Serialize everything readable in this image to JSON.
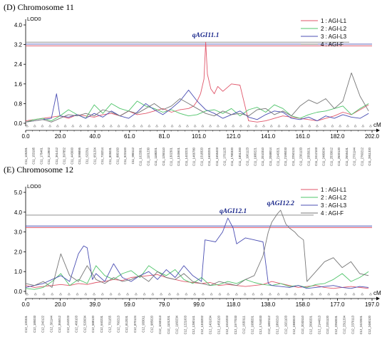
{
  "colors": {
    "AGI-L1": "#e0566a",
    "AGI-L2": "#4fc46a",
    "AGI-L3": "#4b4fb3",
    "AGI-F": "#777777",
    "threshold_red": "#d9455a",
    "threshold_blue": "#4b4fb3",
    "threshold_gray": "#808080"
  },
  "chart_data": [
    {
      "type": "line",
      "title": "(D) Chromosome 11",
      "ylabel": "LOD0",
      "xunit": "cM",
      "xlim": [
        0,
        202
      ],
      "ylim": [
        0,
        4
      ],
      "yticks": [
        "0.0",
        "0.8",
        "1.6",
        "2.4",
        "3.2",
        "4.0"
      ],
      "xticks": [
        "0.0",
        "20.0",
        "40.0",
        "61.0",
        "81.0",
        "101.0",
        "121.0",
        "141.0",
        "161.0",
        "182.0",
        "202.0"
      ],
      "legend": [
        "1 : AGI-L1",
        "2 : AGI-L2",
        "3 : AGI-L3",
        "4 : AGI-F"
      ],
      "thresholds": [
        3.3,
        3.22,
        3.15
      ],
      "qtl": [
        {
          "label": "qAGI11.1",
          "x": 105,
          "y": 3.3
        }
      ],
      "markers": [
        "C11_105281",
        "C11_153195",
        "C11_176461",
        "C11_313902",
        "C11_361412",
        "C11_397852",
        "C11_443000",
        "C11_599895",
        "C11_622311",
        "C11_651204",
        "C11_733214",
        "C11_805031",
        "C11_880150",
        "C11_923100",
        "C11_990112",
        "C11_1023301",
        "C11_1101230",
        "C11_1188201",
        "C11_1250110",
        "C11_1302301",
        "C11_1345601",
        "C11_1402221",
        "C11_1466780",
        "C11_1518320",
        "C11_1600201",
        "C11_1655403",
        "C11_1701125",
        "C11_1780320",
        "C11_1851200",
        "C11_1901123",
        "C11_1980221",
        "C11_2010310",
        "C11_2088014",
        "C11_2140321",
        "C11_2195033",
        "C11_2250124",
        "C11_2301133",
        "C11_2355021",
        "C11_2412103",
        "C11_2480034",
        "C11_2533012",
        "C11_2600120",
        "C11_2655431",
        "C11_2701144",
        "C11_2760212",
        "C11_2811320"
      ],
      "series": [
        {
          "name": "AGI-L1",
          "x": [
            0,
            5,
            10,
            15,
            20,
            25,
            30,
            35,
            40,
            45,
            50,
            55,
            60,
            65,
            70,
            75,
            80,
            85,
            90,
            95,
            98,
            100,
            102,
            104,
            105,
            106,
            108,
            110,
            112,
            115,
            120,
            125,
            130,
            135,
            140,
            145,
            150,
            155,
            160,
            165,
            170,
            175,
            180,
            185,
            190,
            195,
            200
          ],
          "y": [
            0.1,
            0.15,
            0.2,
            0.25,
            0.3,
            0.2,
            0.35,
            0.3,
            0.25,
            0.35,
            0.4,
            0.3,
            0.5,
            0.35,
            0.4,
            0.5,
            0.6,
            0.45,
            0.55,
            0.6,
            0.7,
            0.9,
            1.2,
            1.8,
            3.3,
            2.0,
            1.4,
            1.2,
            1.5,
            1.3,
            1.6,
            1.55,
            0.1,
            0.05,
            0.1,
            0.2,
            0.3,
            0.25,
            0.2,
            0.15,
            0.1,
            0.2,
            0.3,
            0.45,
            0.35,
            0.55,
            0.75
          ]
        },
        {
          "name": "AGI-L2",
          "x": [
            0,
            5,
            10,
            15,
            20,
            25,
            30,
            35,
            40,
            45,
            50,
            55,
            60,
            65,
            70,
            75,
            80,
            85,
            90,
            95,
            100,
            105,
            110,
            115,
            120,
            125,
            130,
            135,
            140,
            145,
            150,
            155,
            160,
            165,
            170,
            175,
            180,
            185,
            190,
            195,
            200
          ],
          "y": [
            0.05,
            0.15,
            0.2,
            0.1,
            0.3,
            0.55,
            0.35,
            0.2,
            0.75,
            0.4,
            0.8,
            0.6,
            0.5,
            0.9,
            0.7,
            0.6,
            0.45,
            0.55,
            0.4,
            0.3,
            0.35,
            0.5,
            0.55,
            0.4,
            0.6,
            0.3,
            0.55,
            0.65,
            0.45,
            0.75,
            0.6,
            0.3,
            0.2,
            0.35,
            0.45,
            0.5,
            0.6,
            0.7,
            0.35,
            0.6,
            0.8
          ]
        },
        {
          "name": "AGI-L3",
          "x": [
            0,
            5,
            10,
            15,
            18,
            20,
            25,
            30,
            35,
            40,
            45,
            50,
            55,
            60,
            65,
            70,
            75,
            80,
            85,
            90,
            95,
            100,
            105,
            110,
            115,
            120,
            125,
            130,
            135,
            140,
            145,
            150,
            155,
            160,
            165,
            170,
            175,
            180,
            185,
            190,
            195,
            200
          ],
          "y": [
            0.05,
            0.1,
            0.15,
            0.2,
            1.2,
            0.3,
            0.25,
            0.35,
            0.2,
            0.4,
            0.25,
            0.5,
            0.3,
            0.2,
            0.45,
            0.8,
            0.55,
            0.35,
            0.6,
            0.9,
            1.35,
            0.9,
            0.55,
            0.4,
            0.2,
            0.35,
            0.5,
            0.25,
            0.15,
            0.35,
            0.5,
            0.45,
            0.2,
            0.15,
            0.25,
            0.1,
            0.3,
            0.2,
            0.35,
            0.25,
            0.2,
            0.4
          ]
        },
        {
          "name": "AGI-F",
          "x": [
            0,
            5,
            10,
            15,
            20,
            25,
            30,
            35,
            40,
            45,
            50,
            55,
            60,
            65,
            70,
            75,
            80,
            85,
            90,
            95,
            100,
            105,
            110,
            115,
            120,
            125,
            130,
            135,
            140,
            145,
            150,
            155,
            160,
            165,
            170,
            175,
            180,
            185,
            190,
            195,
            200
          ],
          "y": [
            0.05,
            0.1,
            0.15,
            0.05,
            0.2,
            0.35,
            0.3,
            0.4,
            0.3,
            0.55,
            0.45,
            0.3,
            0.5,
            0.4,
            0.6,
            0.8,
            0.55,
            0.7,
            1.0,
            0.8,
            0.6,
            0.4,
            0.3,
            0.5,
            0.35,
            0.4,
            0.3,
            0.55,
            0.6,
            0.35,
            0.5,
            0.3,
            0.7,
            0.95,
            0.8,
            1.0,
            0.6,
            0.9,
            2.05,
            1.1,
            0.5
          ]
        }
      ]
    },
    {
      "type": "line",
      "title": "(E) Chromosome 12",
      "ylabel": "LOD0",
      "xunit": "cM",
      "xlim": [
        0,
        197
      ],
      "ylim": [
        0,
        5
      ],
      "yticks": [
        "0.0",
        "1.0",
        "2.0",
        "3.0",
        "4.0",
        "5.0"
      ],
      "xticks": [
        "0.0",
        "20.0",
        "39.0",
        "59.0",
        "79.0",
        "99.0",
        "118.0",
        "138.0",
        "158.0",
        "177.0",
        "197.0"
      ],
      "legend": [
        "1 : AGI-L1",
        "2 : AGI-L2",
        "3 : AGI-L3",
        "4 : AGI-F"
      ],
      "thresholds": [
        3.85,
        3.3,
        3.22
      ],
      "qtl": [
        {
          "label": "qAGI12.1",
          "x": 118,
          "y": 3.7
        },
        {
          "label": "qAGI12.2",
          "x": 145,
          "y": 4.1
        }
      ],
      "markers": [
        "C12_120331",
        "C12_185033",
        "C12_240122",
        "C12_301144",
        "C12_355012",
        "C12_410223",
        "C12_466103",
        "C12_520034",
        "C12_588120",
        "C12_640231",
        "C12_701155",
        "C12_760213",
        "C12_812031",
        "C12_870124",
        "C12_933011",
        "C12_985020",
        "C12_1040113",
        "C12_1101201",
        "C12_1160234",
        "C12_1221003",
        "C12_1280141",
        "C12_1333202",
        "C12_1401034",
        "C12_1455120",
        "C12_1510203",
        "C12_1577033",
        "C12_1630111",
        "C12_1688201",
        "C12_1744033",
        "C12_1802112",
        "C12_1860210",
        "C12_1921103",
        "C12_1980022",
        "C12_2033110",
        "C12_2090201",
        "C12_2144013",
        "C12_2201120",
        "C12_2260031",
        "C12_2311204",
        "C12_2370113",
        "C12_2422001",
        "C12_2480120"
      ],
      "series": [
        {
          "name": "AGI-L1",
          "x": [
            0,
            5,
            10,
            15,
            20,
            25,
            30,
            35,
            40,
            45,
            50,
            55,
            60,
            65,
            70,
            75,
            80,
            85,
            90,
            95,
            100,
            105,
            110,
            115,
            120,
            125,
            130,
            135,
            140,
            145,
            150,
            155,
            160,
            165,
            170,
            175,
            180,
            185,
            190,
            195
          ],
          "y": [
            0.3,
            0.2,
            0.25,
            0.3,
            0.35,
            0.3,
            0.4,
            0.35,
            0.45,
            0.5,
            0.6,
            0.55,
            0.7,
            0.75,
            0.8,
            0.85,
            0.7,
            0.6,
            0.5,
            0.45,
            0.4,
            0.45,
            0.3,
            0.35,
            0.3,
            0.25,
            0.3,
            0.35,
            0.5,
            0.4,
            0.3,
            0.2,
            0.25,
            0.3,
            0.2,
            0.15,
            0.2,
            0.25,
            0.2,
            0.15
          ]
        },
        {
          "name": "AGI-L2",
          "x": [
            0,
            5,
            10,
            15,
            20,
            25,
            30,
            35,
            40,
            45,
            50,
            55,
            60,
            65,
            70,
            75,
            80,
            85,
            90,
            95,
            100,
            105,
            110,
            115,
            120,
            125,
            130,
            135,
            140,
            145,
            150,
            155,
            160,
            165,
            170,
            175,
            180,
            185,
            190,
            195
          ],
          "y": [
            0.15,
            0.1,
            0.2,
            0.5,
            0.9,
            0.3,
            0.6,
            0.4,
            1.3,
            0.8,
            0.6,
            0.9,
            1.05,
            0.7,
            1.3,
            1.0,
            0.8,
            1.1,
            0.6,
            0.4,
            0.7,
            0.3,
            0.35,
            0.5,
            0.4,
            0.6,
            0.45,
            0.35,
            0.3,
            0.4,
            0.25,
            0.3,
            0.2,
            0.35,
            0.4,
            0.6,
            0.9,
            0.5,
            0.7,
            1.0
          ]
        },
        {
          "name": "AGI-L3",
          "x": [
            0,
            5,
            10,
            15,
            20,
            25,
            30,
            33,
            35,
            38,
            40,
            45,
            50,
            55,
            60,
            65,
            70,
            75,
            80,
            85,
            90,
            95,
            100,
            102,
            105,
            108,
            112,
            115,
            118,
            120,
            125,
            130,
            135,
            138,
            140,
            145,
            150,
            155,
            160,
            165,
            170,
            175,
            180,
            185,
            190,
            195
          ],
          "y": [
            0.2,
            0.3,
            0.4,
            0.6,
            0.8,
            0.5,
            1.9,
            2.3,
            2.2,
            0.6,
            0.9,
            0.5,
            1.4,
            0.7,
            0.5,
            0.8,
            1.0,
            0.6,
            1.1,
            0.7,
            1.3,
            0.8,
            0.5,
            2.6,
            2.55,
            2.5,
            3.0,
            3.7,
            3.2,
            2.4,
            2.7,
            2.6,
            2.5,
            0.4,
            0.3,
            0.25,
            0.2,
            0.3,
            0.15,
            0.2,
            0.25,
            0.3,
            0.2,
            0.15,
            0.25,
            0.2
          ]
        },
        {
          "name": "AGI-F",
          "x": [
            0,
            5,
            10,
            15,
            20,
            25,
            30,
            35,
            40,
            45,
            50,
            55,
            60,
            65,
            70,
            75,
            80,
            85,
            90,
            95,
            100,
            105,
            110,
            115,
            120,
            125,
            130,
            135,
            138,
            140,
            143,
            145,
            148,
            150,
            153,
            155,
            158,
            160,
            165,
            170,
            175,
            180,
            185,
            190,
            195
          ],
          "y": [
            0.4,
            0.3,
            0.5,
            0.2,
            1.9,
            0.8,
            0.5,
            1.3,
            0.6,
            0.4,
            0.7,
            0.5,
            0.6,
            0.8,
            0.5,
            1.0,
            0.7,
            0.6,
            0.9,
            0.5,
            0.4,
            0.3,
            0.5,
            0.4,
            0.3,
            0.6,
            0.8,
            1.8,
            3.0,
            3.5,
            3.9,
            4.1,
            3.4,
            3.2,
            3.0,
            2.8,
            2.6,
            0.5,
            1.0,
            1.5,
            1.7,
            1.2,
            1.5,
            0.9,
            0.8
          ]
        }
      ]
    }
  ]
}
